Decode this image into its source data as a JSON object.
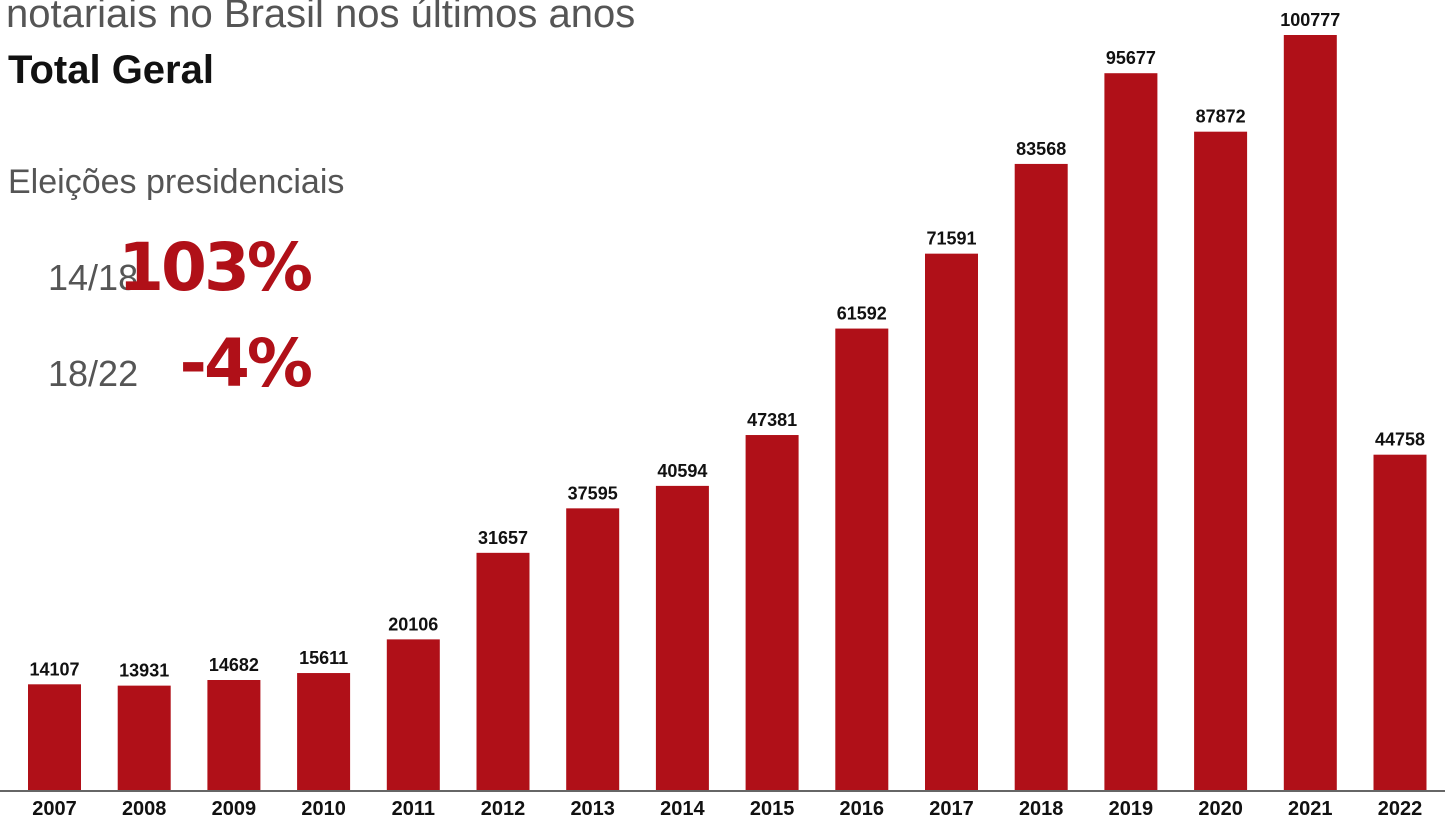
{
  "chart_data": {
    "type": "bar",
    "title": "notariais no Brasil nos últimos anos",
    "subtitle": "Total Geral",
    "annotations": {
      "heading": "Eleições presidenciais",
      "period_1": "14/18",
      "change_1": "103%",
      "period_2": "18/22",
      "change_2": "-4%"
    },
    "categories": [
      "2007",
      "2008",
      "2009",
      "2010",
      "2011",
      "2012",
      "2013",
      "2014",
      "2015",
      "2016",
      "2017",
      "2018",
      "2019",
      "2020",
      "2021",
      "2022"
    ],
    "values": [
      14107,
      13931,
      14682,
      15611,
      20106,
      31657,
      37595,
      40594,
      47381,
      61592,
      71591,
      83568,
      95677,
      87872,
      100777,
      44758
    ],
    "color": "#b01018"
  }
}
